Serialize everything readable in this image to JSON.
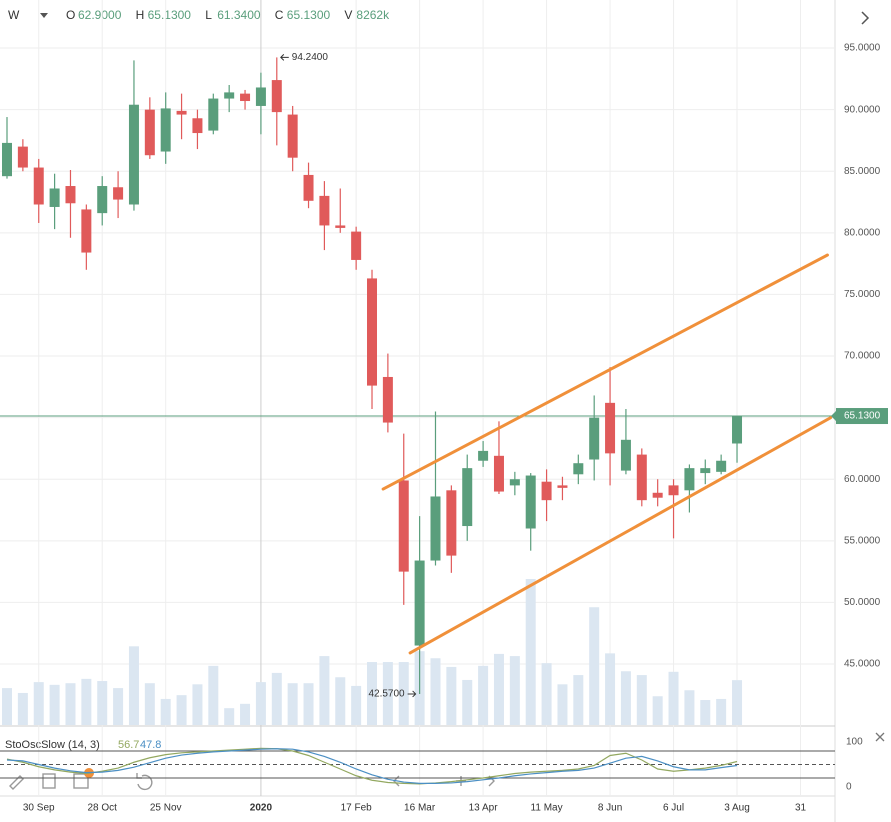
{
  "header": {
    "interval": "W",
    "fields": [
      {
        "key": "O",
        "text": "62.9000"
      },
      {
        "key": "H",
        "text": "65.1300"
      },
      {
        "key": "L",
        "text": "61.3400"
      },
      {
        "key": "C",
        "text": "65.1300"
      },
      {
        "key": "V",
        "text": "8262k"
      }
    ]
  },
  "chart_data": {
    "type": "candlestick",
    "categories": [
      null,
      null,
      "30 Sep",
      null,
      null,
      null,
      "28 Oct",
      null,
      null,
      null,
      "25 Nov",
      null,
      null,
      null,
      null,
      null,
      "2020",
      null,
      null,
      null,
      null,
      null,
      "17 Feb",
      null,
      null,
      null,
      "16 Mar",
      null,
      null,
      null,
      "13 Apr",
      null,
      null,
      null,
      "11 May",
      null,
      null,
      null,
      "8 Jun",
      null,
      null,
      null,
      "6 Jul",
      null,
      null,
      null,
      "3 Aug",
      null,
      null,
      null,
      "31"
    ],
    "open": [
      84.6,
      87.0,
      85.3,
      82.1,
      83.8,
      81.9,
      81.6,
      83.7,
      82.3,
      90.0,
      86.6,
      89.9,
      89.3,
      88.3,
      90.9,
      91.3,
      90.3,
      92.4,
      89.6,
      84.7,
      83.0,
      80.6,
      80.1,
      76.3,
      68.3,
      59.9,
      46.5,
      53.4,
      59.1,
      56.2,
      61.5,
      61.9,
      59.5,
      56.0,
      59.8,
      59.5,
      60.4,
      61.6,
      66.2,
      60.7,
      62.0,
      58.9,
      59.5,
      59.1,
      60.5,
      60.6,
      62.9,
      null,
      null,
      null,
      null
    ],
    "high": [
      89.4,
      87.6,
      86.0,
      84.8,
      85.1,
      82.3,
      84.6,
      85.0,
      94.0,
      91.0,
      91.4,
      91.3,
      90.0,
      91.3,
      92.0,
      91.6,
      93.0,
      94.24,
      90.3,
      85.7,
      84.2,
      83.6,
      80.5,
      77.0,
      70.2,
      63.7,
      57.0,
      65.5,
      59.5,
      62.0,
      63.1,
      64.7,
      60.6,
      60.5,
      60.8,
      60.2,
      62.0,
      66.8,
      69.1,
      65.7,
      62.5,
      60.0,
      60.0,
      61.2,
      61.6,
      62.0,
      65.13,
      null,
      null,
      null,
      null
    ],
    "low": [
      84.4,
      85.0,
      80.8,
      80.3,
      79.6,
      77.0,
      80.6,
      81.2,
      81.8,
      86.0,
      85.6,
      87.6,
      86.8,
      88.0,
      89.8,
      90.0,
      88.0,
      87.1,
      85.0,
      82.0,
      78.6,
      80.0,
      77.0,
      65.7,
      63.8,
      49.8,
      42.57,
      53.0,
      52.4,
      55.0,
      61.0,
      58.8,
      58.7,
      54.2,
      56.6,
      58.3,
      59.6,
      59.9,
      59.5,
      60.4,
      57.8,
      57.8,
      55.2,
      57.3,
      59.6,
      60.4,
      61.34,
      null,
      null,
      null,
      null
    ],
    "close": [
      87.3,
      85.3,
      82.3,
      83.6,
      82.4,
      78.4,
      83.8,
      82.7,
      90.4,
      86.3,
      90.1,
      89.6,
      88.1,
      90.9,
      91.4,
      90.7,
      91.8,
      89.8,
      86.1,
      82.6,
      80.6,
      80.4,
      77.8,
      67.6,
      64.6,
      52.5,
      53.4,
      58.6,
      53.8,
      60.9,
      62.3,
      59.0,
      60.0,
      60.3,
      58.3,
      59.3,
      61.3,
      65.0,
      62.1,
      63.2,
      58.3,
      58.5,
      58.7,
      60.9,
      60.9,
      61.5,
      65.13,
      null,
      null,
      null,
      null
    ],
    "volume": [
      6800,
      5900,
      7900,
      7400,
      7700,
      8500,
      8100,
      6800,
      14500,
      7700,
      4800,
      5500,
      7500,
      10900,
      3100,
      3900,
      7900,
      9600,
      7700,
      7700,
      12700,
      8800,
      7200,
      11600,
      11600,
      11600,
      13600,
      12300,
      10700,
      8300,
      10900,
      13100,
      12700,
      26900,
      11400,
      7500,
      9200,
      21700,
      13200,
      9900,
      9200,
      5300,
      9800,
      6400,
      4600,
      4800,
      8262,
      null,
      null,
      null,
      null
    ],
    "up_color": "#5a9e7c",
    "down_color": "#e05a5a",
    "volume_color": "#dbe6f1",
    "ylim": [
      40.05,
      98.9
    ],
    "yticks": [
      {
        "value": 45,
        "label": "45.0000"
      },
      {
        "value": 50,
        "label": "50.0000"
      },
      {
        "value": 55,
        "label": "55.0000"
      },
      {
        "value": 60,
        "label": "60.0000"
      },
      {
        "value": 65,
        "label": "65.0000"
      },
      {
        "value": 70,
        "label": "70.0000"
      },
      {
        "value": 75,
        "label": "75.0000"
      },
      {
        "value": 80,
        "label": "80.0000"
      },
      {
        "value": 85,
        "label": "85.0000"
      },
      {
        "value": 90,
        "label": "90.0000"
      },
      {
        "value": 95,
        "label": "95.0000"
      }
    ],
    "grid": true,
    "last_price": {
      "value": 65.13,
      "label": "65.1300"
    },
    "annotations": [
      {
        "text": "94.2400",
        "index": 17,
        "value": 94.24
      },
      {
        "text": "42.5700",
        "index": 26,
        "value": 42.57
      }
    ],
    "channel": {
      "color": "#f0903a",
      "lines": [
        {
          "from": [
            23.7,
            59.2
          ],
          "to": [
            51.7,
            78.2
          ]
        },
        {
          "from": [
            25.4,
            45.9
          ],
          "to": [
            51.9,
            65.0
          ]
        }
      ]
    },
    "stochastic": {
      "type": "line",
      "title": "StoOscSlow (14, 3)",
      "ylim": [
        0,
        100
      ],
      "yticks": [
        0,
        100
      ],
      "levels": [
        20,
        50,
        80
      ],
      "series": [
        {
          "name": "56.7",
          "color": "#93a860",
          "values": [
            62,
            55,
            45,
            38,
            33,
            30,
            35,
            42,
            55,
            65,
            72,
            76,
            78,
            80,
            82,
            84,
            86,
            85,
            80,
            70,
            55,
            40,
            25,
            15,
            10,
            8,
            7,
            9,
            12,
            16,
            20,
            25,
            30,
            33,
            35,
            37,
            40,
            48,
            70,
            75,
            60,
            40,
            35,
            38,
            42,
            48,
            56.7,
            null,
            null,
            null,
            null
          ]
        },
        {
          "name": "47.8",
          "color": "#4b8fc4",
          "values": [
            60,
            58,
            50,
            42,
            36,
            32,
            33,
            37,
            44,
            54,
            64,
            71,
            75,
            78,
            80,
            82,
            84,
            85,
            84,
            78,
            68,
            55,
            40,
            27,
            17,
            11,
            8,
            8,
            9,
            12,
            16,
            20,
            25,
            29,
            32,
            35,
            37,
            42,
            53,
            64,
            68,
            58,
            45,
            38,
            38,
            43,
            47.8,
            null,
            null,
            null,
            null
          ]
        }
      ]
    }
  }
}
